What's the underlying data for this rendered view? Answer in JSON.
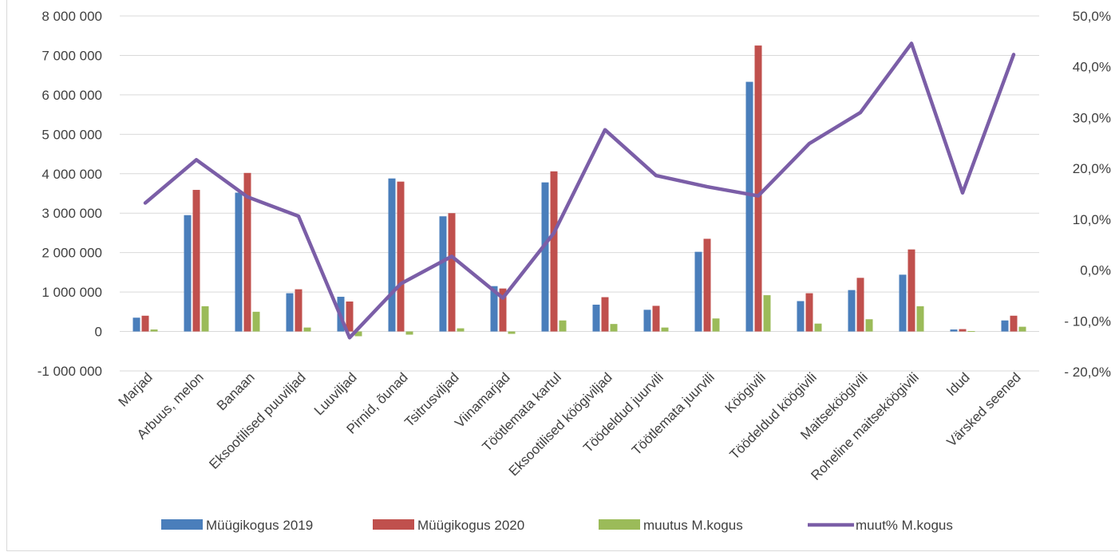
{
  "chart_data": {
    "type": "bar",
    "categories": [
      "Marjad",
      "Arbuus, melon",
      "Banaan",
      "Eksootilised puuviljad",
      "Luuviljad",
      "Pirnid, õunad",
      "Tsitrusviljad",
      "Viinamarjad",
      "Töötlemata kartul",
      "Eksootilised köögiviljad",
      "Töödeldud juurvili",
      "Töötlemata juurvili",
      "Köögivili",
      "Töödeldud köögivili",
      "Maitseköögivili",
      "Roheline maitseköögivili",
      "Idud",
      "Värsked seened"
    ],
    "series": [
      {
        "name": "Müügikogus 2019",
        "type": "bar",
        "axis": "left",
        "color": "#4a7ebb",
        "values": [
          350000,
          2950000,
          3520000,
          970000,
          880000,
          3880000,
          2920000,
          1150000,
          3780000,
          680000,
          550000,
          2020000,
          6330000,
          770000,
          1050000,
          1440000,
          50000,
          280000
        ]
      },
      {
        "name": "Müügikogus 2020",
        "type": "bar",
        "axis": "left",
        "color": "#c0504d",
        "values": [
          400000,
          3590000,
          4020000,
          1070000,
          760000,
          3800000,
          3000000,
          1090000,
          4060000,
          870000,
          650000,
          2350000,
          7250000,
          970000,
          1360000,
          2080000,
          60000,
          400000
        ]
      },
      {
        "name": "muutus M.kogus",
        "type": "bar",
        "axis": "left",
        "color": "#9bbb59",
        "values": [
          50000,
          640000,
          500000,
          100000,
          -120000,
          -80000,
          80000,
          -60000,
          280000,
          190000,
          100000,
          330000,
          920000,
          200000,
          310000,
          640000,
          10000,
          120000
        ]
      },
      {
        "name": "muut% M.kogus",
        "type": "line",
        "axis": "right",
        "color": "#7b5ea7",
        "values": [
          13.2,
          21.7,
          14.4,
          10.6,
          -13.3,
          -2.7,
          2.7,
          -5.5,
          7.3,
          27.6,
          18.6,
          16.4,
          14.6,
          24.9,
          31.0,
          44.6,
          15.2,
          42.4
        ]
      }
    ],
    "y_left": {
      "min": -1000000,
      "max": 8000000,
      "step": 1000000,
      "tick_labels": [
        "-1 000 000",
        "0",
        "1 000 000",
        "2 000 000",
        "3 000 000",
        "4 000 000",
        "5 000 000",
        "6 000 000",
        "7 000 000",
        "8 000 000"
      ]
    },
    "y_right": {
      "min": -20,
      "max": 50,
      "step": 10,
      "tick_labels": [
        "- 20,0%",
        "- 10,0%",
        "0,0%",
        "10,0%",
        "20,0%",
        "30,0%",
        "40,0%",
        "50,0%"
      ]
    },
    "grid": true,
    "legend_position": "bottom",
    "title": "",
    "xlabel": "",
    "ylabel": ""
  }
}
